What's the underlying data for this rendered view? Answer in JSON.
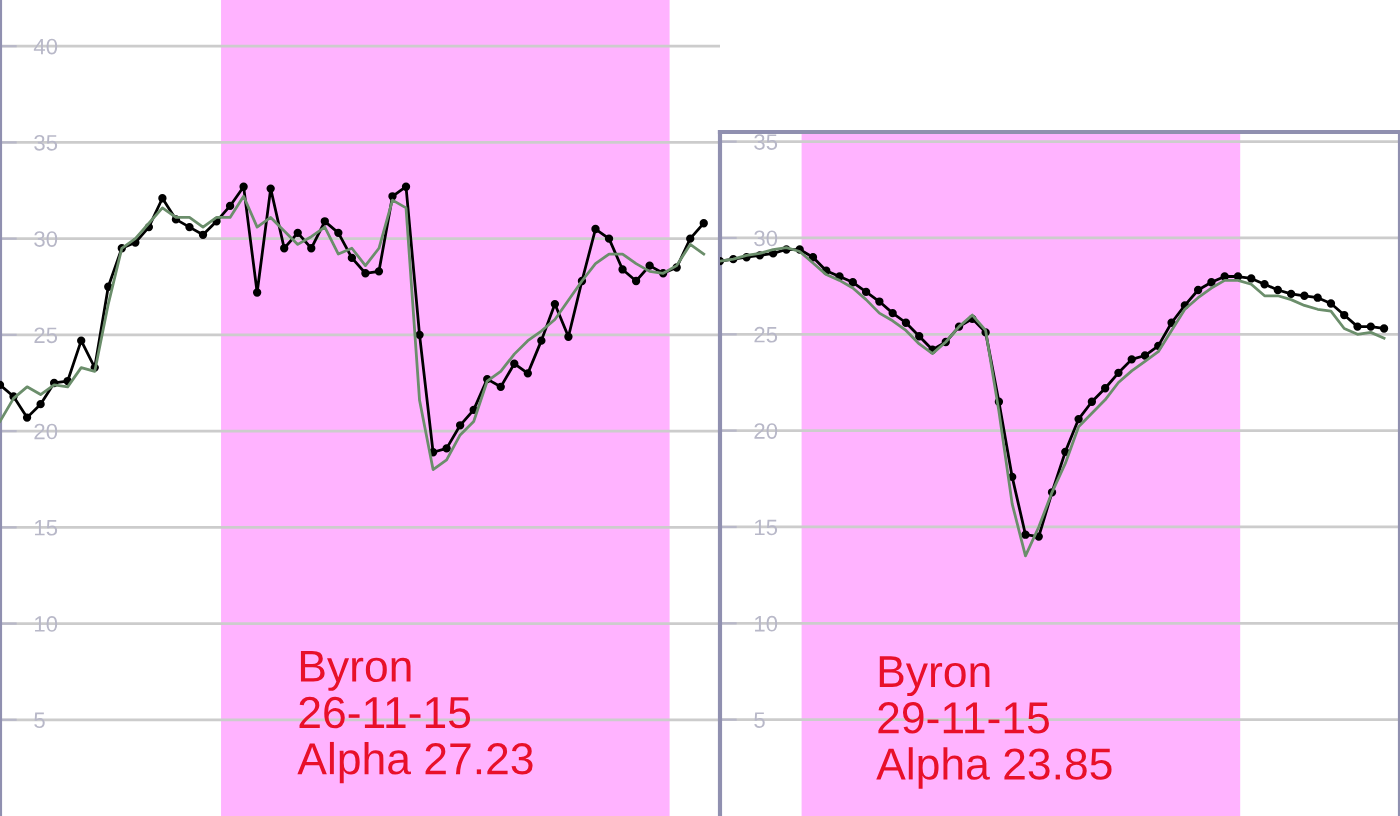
{
  "chart_data": [
    {
      "type": "line",
      "categories": [
        null,
        null,
        null,
        null,
        null,
        null,
        null,
        null,
        null,
        null,
        null,
        null,
        null,
        null,
        null,
        null,
        null,
        null,
        null,
        null,
        null,
        null,
        null,
        null,
        null,
        null,
        null,
        null,
        null,
        null,
        null,
        null,
        null,
        null,
        null,
        null,
        null,
        null,
        null,
        null,
        null,
        null,
        null,
        null,
        null,
        null,
        null,
        null,
        null,
        null,
        null,
        null,
        null
      ],
      "series": [
        {
          "color": "#000000",
          "marker": "circle",
          "values": [
            22.4,
            21.8,
            20.7,
            21.4,
            22.5,
            22.6,
            24.7,
            23.3,
            27.5,
            29.5,
            29.8,
            30.6,
            32.1,
            31.0,
            30.6,
            30.2,
            30.9,
            31.7,
            32.7,
            27.2,
            32.6,
            29.5,
            30.3,
            29.5,
            30.9,
            30.3,
            29.0,
            28.2,
            28.3,
            32.2,
            32.7,
            25.0,
            18.9,
            19.1,
            20.3,
            21.1,
            22.7,
            22.3,
            23.5,
            23.0,
            24.7,
            26.6,
            24.9,
            27.8,
            30.5,
            30.0,
            28.4,
            27.8,
            28.6,
            28.2,
            28.5,
            30.0,
            30.8
          ]
        },
        {
          "color": "#6b8e6b",
          "marker": "none",
          "values": [
            20.5,
            21.7,
            22.3,
            21.9,
            22.4,
            22.3,
            23.3,
            23.1,
            26.6,
            29.5,
            30.0,
            30.8,
            31.6,
            31.1,
            31.1,
            30.6,
            31.1,
            31.1,
            32.2,
            30.6,
            31.1,
            30.4,
            29.7,
            30.1,
            30.6,
            29.2,
            29.5,
            28.6,
            29.5,
            32.0,
            31.6,
            21.6,
            18.0,
            18.5,
            19.8,
            20.5,
            22.6,
            23.1,
            24.0,
            24.7,
            25.2,
            25.8,
            26.8,
            27.8,
            28.7,
            29.2,
            29.2,
            28.7,
            28.3,
            28.2,
            28.6,
            29.7,
            29.2
          ]
        }
      ],
      "ylim": [
        0,
        42.4
      ],
      "yticks": [
        5,
        10,
        15,
        20,
        25,
        30,
        35,
        40
      ],
      "tick_labels": "y",
      "grid": "y",
      "line_style": "solid",
      "annotations": [
        "Byron\n26-11-15\nAlpha 27.23"
      ]
    },
    {
      "type": "line",
      "categories": [
        null,
        null,
        null,
        null,
        null,
        null,
        null,
        null,
        null,
        null,
        null,
        null,
        null,
        null,
        null,
        null,
        null,
        null,
        null,
        null,
        null,
        null,
        null,
        null,
        null,
        null,
        null,
        null,
        null,
        null,
        null,
        null,
        null,
        null,
        null,
        null,
        null,
        null,
        null,
        null,
        null,
        null,
        null,
        null,
        null,
        null,
        null,
        null,
        null,
        null,
        null
      ],
      "series": [
        {
          "color": "#000000",
          "marker": "circle",
          "values": [
            28.8,
            28.9,
            29.0,
            29.1,
            29.2,
            29.4,
            29.4,
            29.0,
            28.3,
            28.0,
            27.7,
            27.2,
            26.7,
            26.1,
            25.6,
            24.9,
            24.2,
            24.6,
            25.4,
            25.8,
            25.1,
            21.5,
            17.6,
            14.6,
            14.5,
            16.8,
            18.9,
            20.6,
            21.5,
            22.2,
            23.0,
            23.7,
            23.9,
            24.4,
            25.6,
            26.5,
            27.3,
            27.7,
            28.0,
            28.0,
            27.9,
            27.6,
            27.3,
            27.1,
            27.0,
            26.9,
            26.6,
            26.0,
            25.4,
            25.4,
            25.3
          ]
        },
        {
          "color": "#6b8e6b",
          "marker": "none",
          "values": [
            28.8,
            28.9,
            29.1,
            29.2,
            29.4,
            29.5,
            29.3,
            28.7,
            28.1,
            27.8,
            27.4,
            26.8,
            26.1,
            25.7,
            25.2,
            24.5,
            24.0,
            24.6,
            25.4,
            26.0,
            25.2,
            21.0,
            16.2,
            13.5,
            15.0,
            16.8,
            18.3,
            20.2,
            20.9,
            21.6,
            22.5,
            23.1,
            23.6,
            24.1,
            25.2,
            26.3,
            26.9,
            27.4,
            27.8,
            27.8,
            27.6,
            27.0,
            27.0,
            26.8,
            26.5,
            26.3,
            26.2,
            25.3,
            25.0,
            25.1,
            24.8
          ]
        }
      ],
      "ylim": [
        0,
        35.5
      ],
      "yticks": [
        5,
        10,
        15,
        20,
        25,
        30,
        35
      ],
      "tick_labels": "y",
      "grid": "y",
      "line_style": "solid",
      "annotations": [
        "Byron\n29-11-15\nAlpha 23.85"
      ]
    }
  ]
}
